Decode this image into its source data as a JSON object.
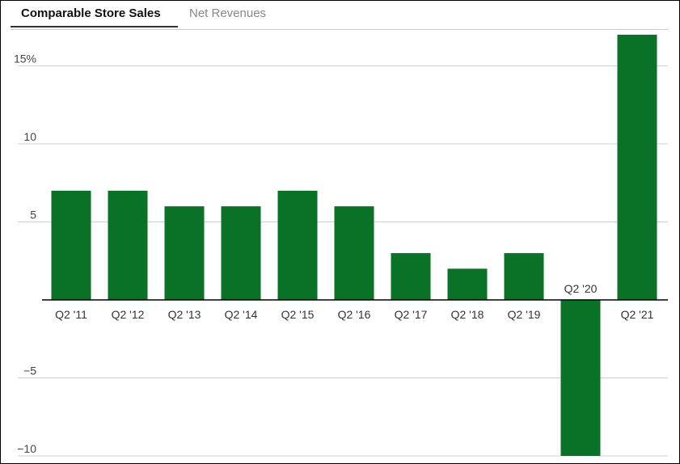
{
  "tabs": [
    {
      "label": "Comparable Store Sales",
      "active": true
    },
    {
      "label": "Net Revenues",
      "active": false
    }
  ],
  "colors": {
    "bar": "#0a7227",
    "grid": "#d0d0d0",
    "zero_line": "#000000"
  },
  "chart_data": {
    "type": "bar",
    "categories": [
      "Q2 '11",
      "Q2 '12",
      "Q2 '13",
      "Q2 '14",
      "Q2 '15",
      "Q2 '16",
      "Q2 '17",
      "Q2 '18",
      "Q2 '19",
      "Q2 '20",
      "Q2 '21"
    ],
    "values": [
      7,
      7,
      6,
      6,
      7,
      6,
      3,
      2,
      3,
      -10,
      17
    ],
    "ylim": [
      -10,
      17
    ],
    "yticks": [
      {
        "value": 15,
        "label": "15%"
      },
      {
        "value": 10,
        "label": "10"
      },
      {
        "value": 5,
        "label": "5"
      },
      {
        "value": -5,
        "label": "−5"
      },
      {
        "value": -10,
        "label": "−10"
      }
    ],
    "grid": true,
    "title": "",
    "xlabel": "",
    "ylabel": ""
  }
}
